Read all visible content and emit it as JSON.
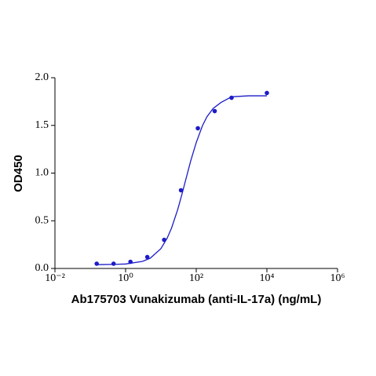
{
  "chart_data": {
    "type": "scatter",
    "x_label": "Ab175703 Vunakizumab (anti-IL-17a) (ng/mL)",
    "y_label": "OD450",
    "x_log": true,
    "series": [
      {
        "color": "#1c1cc8",
        "x": [
          0.152,
          0.457,
          1.372,
          4.115,
          12.35,
          37.04,
          111.1,
          333.3,
          1000,
          10000
        ],
        "values": [
          0.05,
          0.05,
          0.07,
          0.12,
          0.3,
          0.82,
          1.47,
          1.65,
          1.79,
          1.84
        ]
      }
    ],
    "fit": {
      "color": "#1c1cc8",
      "x": [
        0.15,
        0.5,
        1,
        3,
        5,
        10,
        15,
        20,
        30,
        40,
        50,
        70,
        100,
        150,
        200,
        300,
        500,
        1000,
        3000,
        10000
      ],
      "values": [
        0.04,
        0.043,
        0.047,
        0.074,
        0.108,
        0.208,
        0.317,
        0.424,
        0.62,
        0.787,
        0.925,
        1.13,
        1.32,
        1.497,
        1.59,
        1.677,
        1.74,
        1.8,
        1.81,
        1.81
      ]
    },
    "xlim": [
      0.01,
      1000000
    ],
    "xticks": [
      {
        "value": 0.01,
        "label": "10⁻²"
      },
      {
        "value": 1,
        "label": "10⁰"
      },
      {
        "value": 100,
        "label": "10²"
      },
      {
        "value": 10000,
        "label": "10⁴"
      },
      {
        "value": 1000000,
        "label": "10⁶"
      }
    ],
    "ylim": [
      0,
      2
    ],
    "yticks": [
      {
        "value": 0,
        "label": "0.0"
      },
      {
        "value": 0.5,
        "label": "0.5"
      },
      {
        "value": 1,
        "label": "1.0"
      },
      {
        "value": 1.5,
        "label": "1.5"
      },
      {
        "value": 2,
        "label": "2.0"
      }
    ]
  }
}
